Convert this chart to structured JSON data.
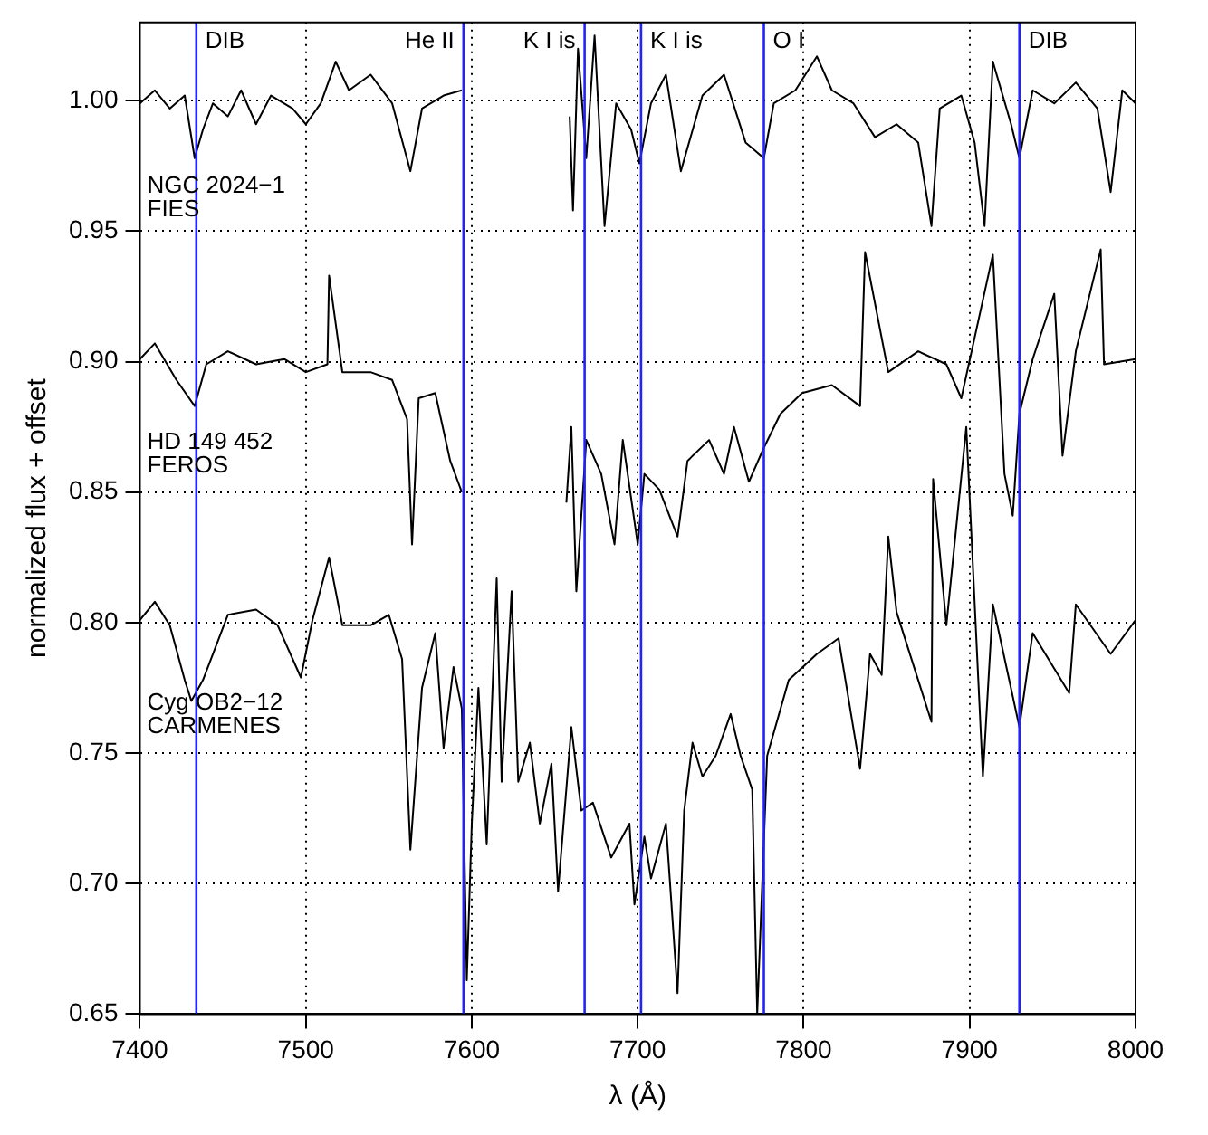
{
  "chart_data": {
    "type": "line",
    "xlabel": "λ (Å)",
    "ylabel": "normalized flux + offset",
    "xlim": [
      7400,
      8000
    ],
    "xticks": [
      7400,
      7500,
      7600,
      7700,
      7800,
      7900,
      8000
    ],
    "ylim": [
      0.65,
      1.03
    ],
    "yticks": [
      0.65,
      {
        "value": 0.7,
        "label": "0.70"
      },
      0.75,
      {
        "value": 0.8,
        "label": "0.80"
      },
      0.85,
      {
        "value": 0.9,
        "label": "0.90"
      },
      0.95,
      {
        "value": 1.0,
        "label": "1.00"
      }
    ],
    "grid": true,
    "legend": false,
    "marker": "none",
    "line_style": "solid",
    "series": [
      {
        "color": "#000000",
        "x": [
          7400,
          7409,
          7418,
          7427,
          7433,
          7438,
          7444,
          7453,
          7461,
          7470,
          7479,
          7492,
          7500,
          7509,
          7518,
          7526,
          7539,
          7552,
          7563,
          7570,
          7583,
          7594,
          7620,
          7659,
          7661,
          7664,
          7669,
          7674,
          7680,
          7687,
          7696,
          7701,
          7708,
          7717,
          7726,
          7739,
          7752,
          7765,
          7776,
          7782,
          7795,
          7808,
          7817,
          7830,
          7843,
          7856,
          7869,
          7877,
          7882,
          7895,
          7903,
          7909,
          7914,
          7925,
          7930,
          7938,
          7951,
          7964,
          7977,
          7985,
          7992,
          8000
        ],
        "values": [
          0.999,
          1.004,
          0.997,
          1.002,
          0.978,
          0.989,
          0.999,
          0.994,
          1.004,
          0.991,
          1.002,
          0.997,
          0.991,
          0.999,
          1.015,
          1.004,
          1.01,
          0.999,
          0.973,
          0.997,
          1.002,
          1.004,
          null,
          0.994,
          0.958,
          1.02,
          0.978,
          1.025,
          0.952,
          0.999,
          0.989,
          0.976,
          0.999,
          1.01,
          0.973,
          1.002,
          1.01,
          0.984,
          0.978,
          0.999,
          1.004,
          1.017,
          1.004,
          0.999,
          0.986,
          0.991,
          0.984,
          0.952,
          0.997,
          1.002,
          0.984,
          0.952,
          1.015,
          0.991,
          0.978,
          1.004,
          0.999,
          1.007,
          0.997,
          0.965,
          1.004,
          0.999
        ]
      },
      {
        "color": "#000000",
        "x": [
          7400,
          7409,
          7422,
          7433,
          7440,
          7453,
          7470,
          7487,
          7500,
          7513,
          7514,
          7522,
          7539,
          7552,
          7561,
          7564,
          7568,
          7578,
          7587,
          7594,
          7620,
          7657,
          7660,
          7663,
          7669,
          7678,
          7686,
          7691,
          7700,
          7704,
          7713,
          7724,
          7730,
          7743,
          7752,
          7758,
          7767,
          7776,
          7786,
          7799,
          7817,
          7834,
          7837,
          7851,
          7869,
          7886,
          7895,
          7914,
          7921,
          7926,
          7930,
          7938,
          7951,
          7956,
          7964,
          7979,
          7981,
          8000
        ],
        "values": [
          0.901,
          0.907,
          0.893,
          0.883,
          0.899,
          0.904,
          0.899,
          0.901,
          0.896,
          0.899,
          0.933,
          0.896,
          0.896,
          0.893,
          0.878,
          0.83,
          0.886,
          0.888,
          0.862,
          0.85,
          null,
          0.846,
          0.875,
          0.812,
          0.87,
          0.857,
          0.83,
          0.87,
          0.83,
          0.857,
          0.851,
          0.833,
          0.862,
          0.87,
          0.857,
          0.875,
          0.854,
          0.867,
          0.88,
          0.888,
          0.891,
          0.883,
          0.942,
          0.896,
          0.904,
          0.899,
          0.886,
          0.941,
          0.857,
          0.841,
          0.88,
          0.901,
          0.926,
          0.864,
          0.904,
          0.943,
          0.899,
          0.901
        ]
      },
      {
        "color": "#000000",
        "x": [
          7400,
          7409,
          7418,
          7427,
          7431,
          7438,
          7444,
          7453,
          7470,
          7483,
          7497,
          7504,
          7514,
          7522,
          7539,
          7550,
          7558,
          7563,
          7570,
          7578,
          7583,
          7589,
          7594,
          7597,
          7600,
          7604,
          7609,
          7615,
          7618,
          7624,
          7628,
          7635,
          7641,
          7648,
          7652,
          7660,
          7666,
          7673,
          7684,
          7695,
          7698,
          7704,
          7708,
          7717,
          7724,
          7728,
          7733,
          7739,
          7747,
          7756,
          7762,
          7769,
          7772,
          7778,
          7791,
          7808,
          7821,
          7834,
          7840,
          7847,
          7851,
          7856,
          7877,
          7878,
          7886,
          7898,
          7908,
          7914,
          7930,
          7938,
          7960,
          7964,
          7985,
          8000
        ],
        "values": [
          0.801,
          0.808,
          0.799,
          0.778,
          0.77,
          0.778,
          0.788,
          0.803,
          0.805,
          0.799,
          0.779,
          0.801,
          0.825,
          0.799,
          0.799,
          0.803,
          0.786,
          0.713,
          0.775,
          0.796,
          0.752,
          0.783,
          0.767,
          0.663,
          0.723,
          0.775,
          0.715,
          0.817,
          0.739,
          0.812,
          0.739,
          0.754,
          0.723,
          0.746,
          0.697,
          0.76,
          0.728,
          0.731,
          0.71,
          0.723,
          0.692,
          0.718,
          0.702,
          0.723,
          0.658,
          0.728,
          0.754,
          0.741,
          0.749,
          0.765,
          0.749,
          0.736,
          0.65,
          0.749,
          0.778,
          0.788,
          0.794,
          0.744,
          0.788,
          0.78,
          0.833,
          0.804,
          0.762,
          0.855,
          0.799,
          0.875,
          0.741,
          0.807,
          0.76,
          0.796,
          0.773,
          0.807,
          0.788,
          0.801
        ]
      }
    ],
    "ref_lines": [
      {
        "axis": "x",
        "value": 7434,
        "label": "DIB",
        "color": "#2222ff"
      },
      {
        "axis": "x",
        "value": 7595,
        "label": "He II",
        "color": "#2222ff"
      },
      {
        "axis": "x",
        "value": 7668,
        "label": "K I is",
        "color": "#2222ff"
      },
      {
        "axis": "x",
        "value": 7702,
        "label": "K I is",
        "color": "#2222ff"
      },
      {
        "axis": "x",
        "value": 7776,
        "label": "O I",
        "color": "#2222ff"
      },
      {
        "axis": "x",
        "value": 7930,
        "label": "DIB",
        "color": "#2222ff"
      }
    ],
    "annotations": [
      "NGC 2024−1",
      "FIES",
      "HD 149 452",
      "FEROS",
      "Cyg OB2−12",
      "CARMENES"
    ]
  }
}
